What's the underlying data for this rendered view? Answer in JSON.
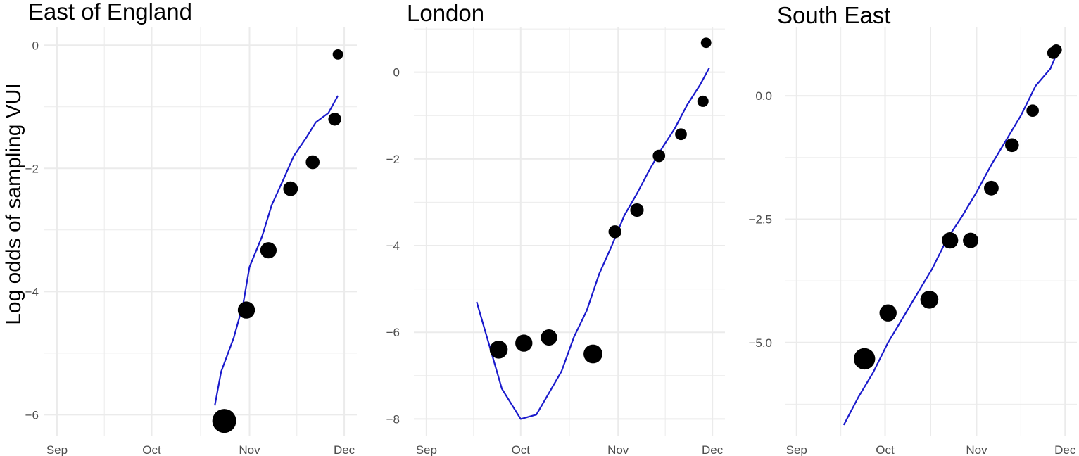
{
  "figure": {
    "ylabel": "Log odds of sampling VUI"
  },
  "colors": {
    "line": "#1a1acc",
    "point": "#000000",
    "grid": "#ebebeb",
    "tick_text": "#4d4d4d"
  },
  "chart_data": [
    {
      "type": "scatter",
      "title": "East of England",
      "xlabel": "",
      "ylabel": "Log odds of sampling VUI",
      "x_ticks": [
        "Sep",
        "Oct",
        "Nov",
        "Dec"
      ],
      "x_tick_values": [
        "2020-09-01",
        "2020-10-01",
        "2020-11-01",
        "2020-12-01"
      ],
      "xlim": [
        "2020-08-28",
        "2020-12-05"
      ],
      "y_ticks": [
        0,
        -2,
        -4,
        -6
      ],
      "y_tick_labels": [
        "0",
        "−2",
        "−4",
        "−6"
      ],
      "ylim": [
        -6.35,
        0.3
      ],
      "grid": true,
      "points": [
        {
          "x": "2020-10-24",
          "y": -6.1,
          "size": 1.0
        },
        {
          "x": "2020-10-31",
          "y": -4.3,
          "size": 0.6
        },
        {
          "x": "2020-11-07",
          "y": -3.33,
          "size": 0.55
        },
        {
          "x": "2020-11-14",
          "y": -2.33,
          "size": 0.45
        },
        {
          "x": "2020-11-21",
          "y": -1.9,
          "size": 0.4
        },
        {
          "x": "2020-11-28",
          "y": -1.2,
          "size": 0.35
        },
        {
          "x": "2020-11-29",
          "y": -0.15,
          "size": 0.2
        }
      ],
      "line": [
        {
          "x": "2020-10-21",
          "y": -5.85
        },
        {
          "x": "2020-10-23",
          "y": -5.3
        },
        {
          "x": "2020-10-27",
          "y": -4.75
        },
        {
          "x": "2020-10-30",
          "y": -4.2
        },
        {
          "x": "2020-11-01",
          "y": -3.6
        },
        {
          "x": "2020-11-05",
          "y": -3.1
        },
        {
          "x": "2020-11-08",
          "y": -2.6
        },
        {
          "x": "2020-11-12",
          "y": -2.15
        },
        {
          "x": "2020-11-15",
          "y": -1.8
        },
        {
          "x": "2020-11-19",
          "y": -1.5
        },
        {
          "x": "2020-11-22",
          "y": -1.25
        },
        {
          "x": "2020-11-26",
          "y": -1.1
        },
        {
          "x": "2020-11-29",
          "y": -0.82
        }
      ]
    },
    {
      "type": "scatter",
      "title": "London",
      "xlabel": "",
      "ylabel": "",
      "x_ticks": [
        "Sep",
        "Oct",
        "Nov",
        "Dec"
      ],
      "x_tick_values": [
        "2020-09-01",
        "2020-10-01",
        "2020-11-01",
        "2020-12-01"
      ],
      "xlim": [
        "2020-08-28",
        "2020-12-05"
      ],
      "y_ticks": [
        0,
        -2,
        -4,
        -6,
        -8
      ],
      "y_tick_labels": [
        "0",
        "−2",
        "−4",
        "−6",
        "−8"
      ],
      "ylim": [
        -8.4,
        1.05
      ],
      "grid": true,
      "points": [
        {
          "x": "2020-09-24",
          "y": -6.4,
          "size": 0.65
        },
        {
          "x": "2020-10-02",
          "y": -6.25,
          "size": 0.6
        },
        {
          "x": "2020-10-10",
          "y": -6.12,
          "size": 0.55
        },
        {
          "x": "2020-10-24",
          "y": -6.5,
          "size": 0.7
        },
        {
          "x": "2020-10-31",
          "y": -3.68,
          "size": 0.35
        },
        {
          "x": "2020-11-07",
          "y": -3.18,
          "size": 0.38
        },
        {
          "x": "2020-11-14",
          "y": -1.93,
          "size": 0.32
        },
        {
          "x": "2020-11-21",
          "y": -1.43,
          "size": 0.28
        },
        {
          "x": "2020-11-28",
          "y": -0.67,
          "size": 0.25
        },
        {
          "x": "2020-11-29",
          "y": 0.68,
          "size": 0.2
        }
      ],
      "line": [
        {
          "x": "2020-09-17",
          "y": -5.3
        },
        {
          "x": "2020-09-21",
          "y": -6.3
        },
        {
          "x": "2020-09-25",
          "y": -7.3
        },
        {
          "x": "2020-10-01",
          "y": -8.0
        },
        {
          "x": "2020-10-06",
          "y": -7.9
        },
        {
          "x": "2020-10-10",
          "y": -7.4
        },
        {
          "x": "2020-10-14",
          "y": -6.9
        },
        {
          "x": "2020-10-18",
          "y": -6.1
        },
        {
          "x": "2020-10-22",
          "y": -5.5
        },
        {
          "x": "2020-10-26",
          "y": -4.65
        },
        {
          "x": "2020-10-30",
          "y": -4.0
        },
        {
          "x": "2020-11-03",
          "y": -3.3
        },
        {
          "x": "2020-11-07",
          "y": -2.8
        },
        {
          "x": "2020-11-11",
          "y": -2.25
        },
        {
          "x": "2020-11-15",
          "y": -1.75
        },
        {
          "x": "2020-11-19",
          "y": -1.3
        },
        {
          "x": "2020-11-23",
          "y": -0.75
        },
        {
          "x": "2020-11-27",
          "y": -0.3
        },
        {
          "x": "2020-11-30",
          "y": 0.1
        }
      ]
    },
    {
      "type": "scatter",
      "title": "South East",
      "xlabel": "",
      "ylabel": "",
      "x_ticks": [
        "Sep",
        "Oct",
        "Nov",
        "Dec"
      ],
      "x_tick_values": [
        "2020-09-01",
        "2020-10-01",
        "2020-11-01",
        "2020-12-01"
      ],
      "xlim": [
        "2020-08-28",
        "2020-12-05"
      ],
      "y_ticks": [
        0.0,
        -2.5,
        -5.0
      ],
      "y_tick_labels": [
        "0.0",
        "−2.5",
        "−5.0"
      ],
      "ylim": [
        -6.9,
        1.4
      ],
      "grid": true,
      "points": [
        {
          "x": "2020-09-24",
          "y": -5.33,
          "size": 0.85
        },
        {
          "x": "2020-10-02",
          "y": -4.4,
          "size": 0.6
        },
        {
          "x": "2020-10-16",
          "y": -4.13,
          "size": 0.65
        },
        {
          "x": "2020-10-23",
          "y": -2.93,
          "size": 0.55
        },
        {
          "x": "2020-10-30",
          "y": -2.93,
          "size": 0.5
        },
        {
          "x": "2020-11-06",
          "y": -1.87,
          "size": 0.45
        },
        {
          "x": "2020-11-13",
          "y": -1.0,
          "size": 0.4
        },
        {
          "x": "2020-11-20",
          "y": -0.3,
          "size": 0.32
        },
        {
          "x": "2020-11-27",
          "y": 0.87,
          "size": 0.3
        },
        {
          "x": "2020-11-28",
          "y": 0.93,
          "size": 0.25
        }
      ],
      "line": [
        {
          "x": "2020-09-17",
          "y": -6.67
        },
        {
          "x": "2020-09-22",
          "y": -6.1
        },
        {
          "x": "2020-09-27",
          "y": -5.6
        },
        {
          "x": "2020-10-02",
          "y": -5.0
        },
        {
          "x": "2020-10-07",
          "y": -4.5
        },
        {
          "x": "2020-10-12",
          "y": -4.0
        },
        {
          "x": "2020-10-17",
          "y": -3.5
        },
        {
          "x": "2020-10-22",
          "y": -2.9
        },
        {
          "x": "2020-10-27",
          "y": -2.45
        },
        {
          "x": "2020-11-01",
          "y": -1.95
        },
        {
          "x": "2020-11-06",
          "y": -1.4
        },
        {
          "x": "2020-11-11",
          "y": -0.9
        },
        {
          "x": "2020-11-16",
          "y": -0.4
        },
        {
          "x": "2020-11-21",
          "y": 0.2
        },
        {
          "x": "2020-11-26",
          "y": 0.55
        },
        {
          "x": "2020-11-29",
          "y": 0.97
        }
      ]
    }
  ]
}
